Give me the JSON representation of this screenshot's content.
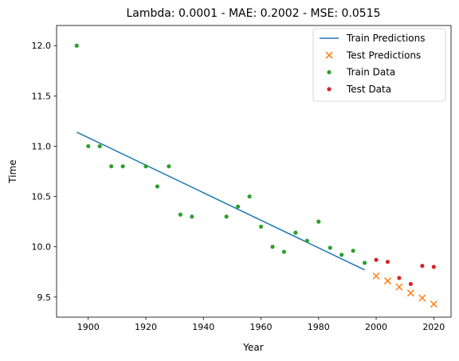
{
  "chart_data": {
    "type": "scatter",
    "title": "Lambda: 0.0001 - MAE: 0.2002 - MSE: 0.0515",
    "xlabel": "Year",
    "ylabel": "Time",
    "xlim": [
      1889,
      2026
    ],
    "ylim": [
      9.3,
      12.2
    ],
    "x_ticks": [
      1900,
      1920,
      1940,
      1960,
      1980,
      2000,
      2020
    ],
    "y_ticks": [
      9.5,
      10.0,
      10.5,
      11.0,
      11.5,
      12.0
    ],
    "grid": false,
    "legend_position": "top-right",
    "series": [
      {
        "name": "Train Predictions",
        "kind": "line",
        "color": "#1f77b4",
        "points": [
          [
            1896,
            11.14
          ],
          [
            1996,
            9.77
          ]
        ]
      },
      {
        "name": "Test Predictions",
        "kind": "x-marker",
        "color": "#ff7f0e",
        "points": [
          [
            2000,
            9.71
          ],
          [
            2004,
            9.66
          ],
          [
            2008,
            9.6
          ],
          [
            2012,
            9.54
          ],
          [
            2016,
            9.49
          ],
          [
            2020,
            9.43
          ]
        ]
      },
      {
        "name": "Train Data",
        "kind": "dot",
        "color": "#2ca02c",
        "points": [
          [
            1896,
            12.0
          ],
          [
            1900,
            11.0
          ],
          [
            1904,
            11.0
          ],
          [
            1908,
            10.8
          ],
          [
            1912,
            10.8
          ],
          [
            1920,
            10.8
          ],
          [
            1924,
            10.6
          ],
          [
            1928,
            10.8
          ],
          [
            1932,
            10.32
          ],
          [
            1936,
            10.3
          ],
          [
            1948,
            10.3
          ],
          [
            1952,
            10.4
          ],
          [
            1956,
            10.5
          ],
          [
            1960,
            10.2
          ],
          [
            1964,
            10.0
          ],
          [
            1968,
            9.95
          ],
          [
            1972,
            10.14
          ],
          [
            1976,
            10.06
          ],
          [
            1980,
            10.25
          ],
          [
            1984,
            9.99
          ],
          [
            1988,
            9.92
          ],
          [
            1992,
            9.96
          ],
          [
            1996,
            9.84
          ]
        ]
      },
      {
        "name": "Test Data",
        "kind": "dot",
        "color": "#d62728",
        "points": [
          [
            2000,
            9.87
          ],
          [
            2004,
            9.85
          ],
          [
            2008,
            9.69
          ],
          [
            2012,
            9.63
          ],
          [
            2016,
            9.81
          ],
          [
            2020,
            9.8
          ]
        ]
      }
    ]
  }
}
